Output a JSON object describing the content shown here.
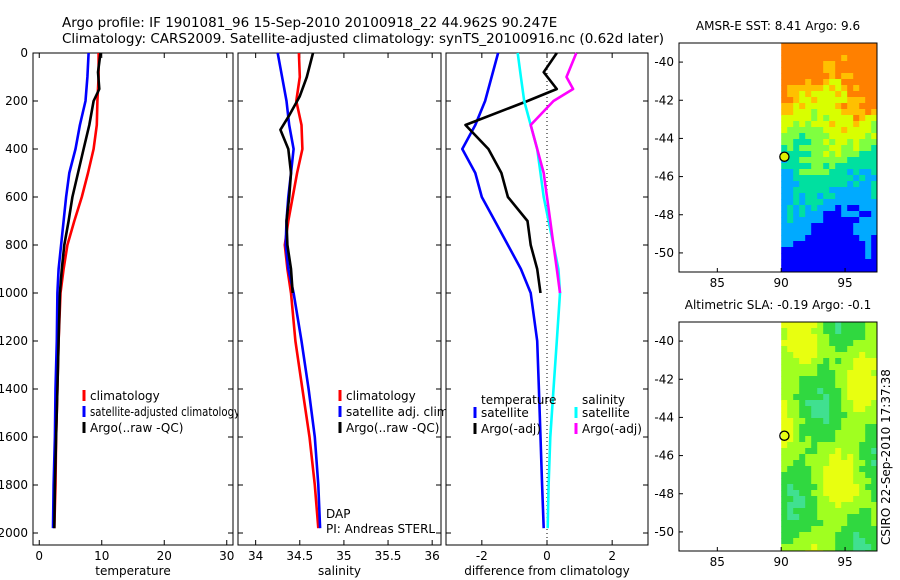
{
  "title_line1": "Argo profile: IF 1901081_96 15-Sep-2010 20100918_22 44.962S 90.247E",
  "title_line2": "Climatology: CARS2009. Satellite-adjusted climatology: synTS_20100916.nc (0.62d later)",
  "side_label": "CSIRO 22-Sep-2010 17:37:38",
  "colors": {
    "climatology": "#ff0000",
    "satellite": "#0000ff",
    "argo": "#000000",
    "satellite_sal": "#00ffff",
    "argo_sal": "#ff00ff"
  },
  "chart_data": [
    {
      "type": "line",
      "id": "temperature",
      "xlabel": "temperature",
      "xlim": [
        -1,
        31
      ],
      "ylim": [
        0,
        2050
      ],
      "yreversed": true,
      "xticks": [
        0,
        10,
        20,
        30
      ],
      "yticks": [
        0,
        200,
        400,
        600,
        800,
        1000,
        1200,
        1400,
        1600,
        1800,
        2000
      ],
      "legend": [
        "climatology",
        "satellite-adjusted climatology",
        "Argo(..raw -QC)"
      ],
      "series": [
        {
          "name": "climatology",
          "color": "#ff0000",
          "points": [
            [
              9.5,
              0
            ],
            [
              9.5,
              100
            ],
            [
              9.3,
              200
            ],
            [
              9.2,
              300
            ],
            [
              8.7,
              400
            ],
            [
              7.8,
              500
            ],
            [
              6.8,
              600
            ],
            [
              5.6,
              700
            ],
            [
              4.5,
              800
            ],
            [
              3.9,
              900
            ],
            [
              3.4,
              1000
            ],
            [
              3.1,
              1200
            ],
            [
              2.9,
              1400
            ],
            [
              2.7,
              1600
            ],
            [
              2.6,
              1800
            ],
            [
              2.4,
              1980
            ]
          ]
        },
        {
          "name": "satellite-adjusted climatology",
          "color": "#0000ff",
          "points": [
            [
              7.9,
              0
            ],
            [
              7.7,
              100
            ],
            [
              7.4,
              200
            ],
            [
              6.5,
              300
            ],
            [
              5.8,
              400
            ],
            [
              4.8,
              500
            ],
            [
              4.3,
              600
            ],
            [
              3.9,
              700
            ],
            [
              3.5,
              800
            ],
            [
              3.1,
              900
            ],
            [
              2.9,
              1000
            ],
            [
              2.8,
              1200
            ],
            [
              2.6,
              1400
            ],
            [
              2.5,
              1600
            ],
            [
              2.3,
              1800
            ],
            [
              2.2,
              1980
            ]
          ]
        },
        {
          "name": "Argo(..raw -QC)",
          "color": "#000000",
          "points": [
            [
              9.8,
              0
            ],
            [
              9.4,
              80
            ],
            [
              9.6,
              150
            ],
            [
              8.7,
              200
            ],
            [
              8.0,
              300
            ],
            [
              7.1,
              400
            ],
            [
              6.2,
              500
            ],
            [
              5.3,
              600
            ],
            [
              4.7,
              700
            ],
            [
              4.0,
              800
            ],
            [
              3.6,
              900
            ],
            [
              3.3,
              1000
            ],
            [
              3.1,
              1200
            ],
            [
              2.9,
              1400
            ],
            [
              2.7,
              1600
            ],
            [
              2.5,
              1800
            ],
            [
              2.4,
              1980
            ]
          ]
        }
      ]
    },
    {
      "type": "line",
      "id": "salinity",
      "xlabel": "salinity",
      "xlim": [
        33.8,
        36.1
      ],
      "ylim": [
        0,
        2050
      ],
      "yreversed": true,
      "xticks": [
        34,
        34.5,
        35,
        35.5,
        36
      ],
      "yticks": [
        0,
        200,
        400,
        600,
        800,
        1000,
        1200,
        1400,
        1600,
        1800,
        2000
      ],
      "legend": [
        "climatology",
        "satellite adj. clim.",
        "Argo(..raw -QC)"
      ],
      "annotation": [
        "DAP",
        "PI: Andreas STERL"
      ],
      "series": [
        {
          "name": "climatology",
          "color": "#ff0000",
          "points": [
            [
              34.49,
              0
            ],
            [
              34.5,
              100
            ],
            [
              34.46,
              200
            ],
            [
              34.52,
              300
            ],
            [
              34.53,
              400
            ],
            [
              34.47,
              500
            ],
            [
              34.42,
              600
            ],
            [
              34.37,
              700
            ],
            [
              34.33,
              800
            ],
            [
              34.36,
              900
            ],
            [
              34.4,
              1000
            ],
            [
              34.45,
              1200
            ],
            [
              34.53,
              1400
            ],
            [
              34.61,
              1600
            ],
            [
              34.67,
              1800
            ],
            [
              34.71,
              1980
            ]
          ]
        },
        {
          "name": "satellite adj. clim.",
          "color": "#0000ff",
          "points": [
            [
              34.25,
              0
            ],
            [
              34.3,
              100
            ],
            [
              34.35,
              200
            ],
            [
              34.38,
              300
            ],
            [
              34.43,
              400
            ],
            [
              34.4,
              500
            ],
            [
              34.37,
              600
            ],
            [
              34.35,
              700
            ],
            [
              34.34,
              800
            ],
            [
              34.37,
              900
            ],
            [
              34.43,
              1000
            ],
            [
              34.52,
              1200
            ],
            [
              34.6,
              1400
            ],
            [
              34.67,
              1600
            ],
            [
              34.71,
              1800
            ],
            [
              34.73,
              1980
            ]
          ]
        },
        {
          "name": "Argo(..raw -QC)",
          "color": "#000000",
          "points": [
            [
              34.65,
              0
            ],
            [
              34.58,
              100
            ],
            [
              34.5,
              180
            ],
            [
              34.38,
              260
            ],
            [
              34.28,
              320
            ],
            [
              34.37,
              400
            ],
            [
              34.4,
              500
            ],
            [
              34.38,
              600
            ],
            [
              34.35,
              700
            ],
            [
              34.36,
              800
            ],
            [
              34.4,
              900
            ],
            [
              34.42,
              1000
            ]
          ]
        }
      ]
    },
    {
      "type": "line",
      "id": "difference",
      "xlabel": "difference from climatology",
      "xlim": [
        -3.1,
        3.1
      ],
      "ylim": [
        0,
        2050
      ],
      "yreversed": true,
      "xticks": [
        -2,
        0,
        2
      ],
      "yticks": [
        0,
        200,
        400,
        600,
        800,
        1000,
        1200,
        1400,
        1600,
        1800,
        2000
      ],
      "legend_temperature": {
        "title": "temperature",
        "items": [
          "satellite",
          "Argo(-adj)"
        ]
      },
      "legend_salinity": {
        "title": "salinity",
        "items": [
          "satellite",
          "Argo(-adj)"
        ]
      },
      "series": [
        {
          "name": "temperature satellite",
          "color": "#0000ff",
          "points": [
            [
              -1.5,
              0
            ],
            [
              -1.7,
              100
            ],
            [
              -1.9,
              200
            ],
            [
              -2.2,
              300
            ],
            [
              -2.6,
              400
            ],
            [
              -2.2,
              500
            ],
            [
              -2.0,
              600
            ],
            [
              -1.6,
              700
            ],
            [
              -1.2,
              800
            ],
            [
              -0.8,
              900
            ],
            [
              -0.5,
              1000
            ],
            [
              -0.3,
              1200
            ],
            [
              -0.25,
              1400
            ],
            [
              -0.2,
              1600
            ],
            [
              -0.15,
              1800
            ],
            [
              -0.1,
              1980
            ]
          ]
        },
        {
          "name": "temperature Argo(-adj)",
          "color": "#000000",
          "points": [
            [
              0.3,
              0
            ],
            [
              -0.1,
              80
            ],
            [
              0.3,
              150
            ],
            [
              -0.6,
              200
            ],
            [
              -2.5,
              300
            ],
            [
              -1.8,
              400
            ],
            [
              -1.4,
              500
            ],
            [
              -1.2,
              600
            ],
            [
              -0.6,
              700
            ],
            [
              -0.5,
              800
            ],
            [
              -0.3,
              900
            ],
            [
              -0.2,
              1000
            ]
          ]
        },
        {
          "name": "salinity satellite",
          "color": "#00ffff",
          "points": [
            [
              -0.9,
              0
            ],
            [
              -0.8,
              100
            ],
            [
              -0.7,
              200
            ],
            [
              -0.5,
              300
            ],
            [
              -0.3,
              400
            ],
            [
              -0.2,
              500
            ],
            [
              -0.1,
              600
            ],
            [
              0.05,
              700
            ],
            [
              0.2,
              800
            ],
            [
              0.35,
              900
            ],
            [
              0.4,
              1000
            ],
            [
              0.3,
              1200
            ],
            [
              0.2,
              1400
            ],
            [
              0.1,
              1600
            ],
            [
              0.05,
              1800
            ],
            [
              0.02,
              1980
            ]
          ]
        },
        {
          "name": "salinity Argo(-adj)",
          "color": "#ff00ff",
          "points": [
            [
              0.9,
              0
            ],
            [
              0.6,
              100
            ],
            [
              0.8,
              150
            ],
            [
              0.2,
              200
            ],
            [
              -0.5,
              300
            ],
            [
              -0.3,
              400
            ],
            [
              -0.1,
              500
            ],
            [
              0.0,
              600
            ],
            [
              0.1,
              700
            ],
            [
              0.2,
              800
            ],
            [
              0.3,
              900
            ],
            [
              0.4,
              1000
            ]
          ]
        }
      ]
    },
    {
      "type": "heatmap",
      "id": "sst",
      "title": "AMSR-E SST: 8.41 Argo: 9.6",
      "xlim": [
        82,
        97.5
      ],
      "ylim": [
        -51,
        -39
      ],
      "xticks": [
        85,
        90,
        95
      ],
      "yticks": [
        -40,
        -42,
        -44,
        -46,
        -48,
        -50
      ],
      "marker": [
        90.25,
        -44.96
      ],
      "data_start_lon": 90
    },
    {
      "type": "heatmap",
      "id": "sla",
      "title": "Altimetric SLA: -0.19 Argo: -0.1",
      "xlim": [
        82,
        97.5
      ],
      "ylim": [
        -51,
        -39
      ],
      "xticks": [
        85,
        90,
        95
      ],
      "yticks": [
        -40,
        -42,
        -44,
        -46,
        -48,
        -50
      ],
      "marker": [
        90.25,
        -44.96
      ],
      "data_start_lon": 90
    }
  ]
}
